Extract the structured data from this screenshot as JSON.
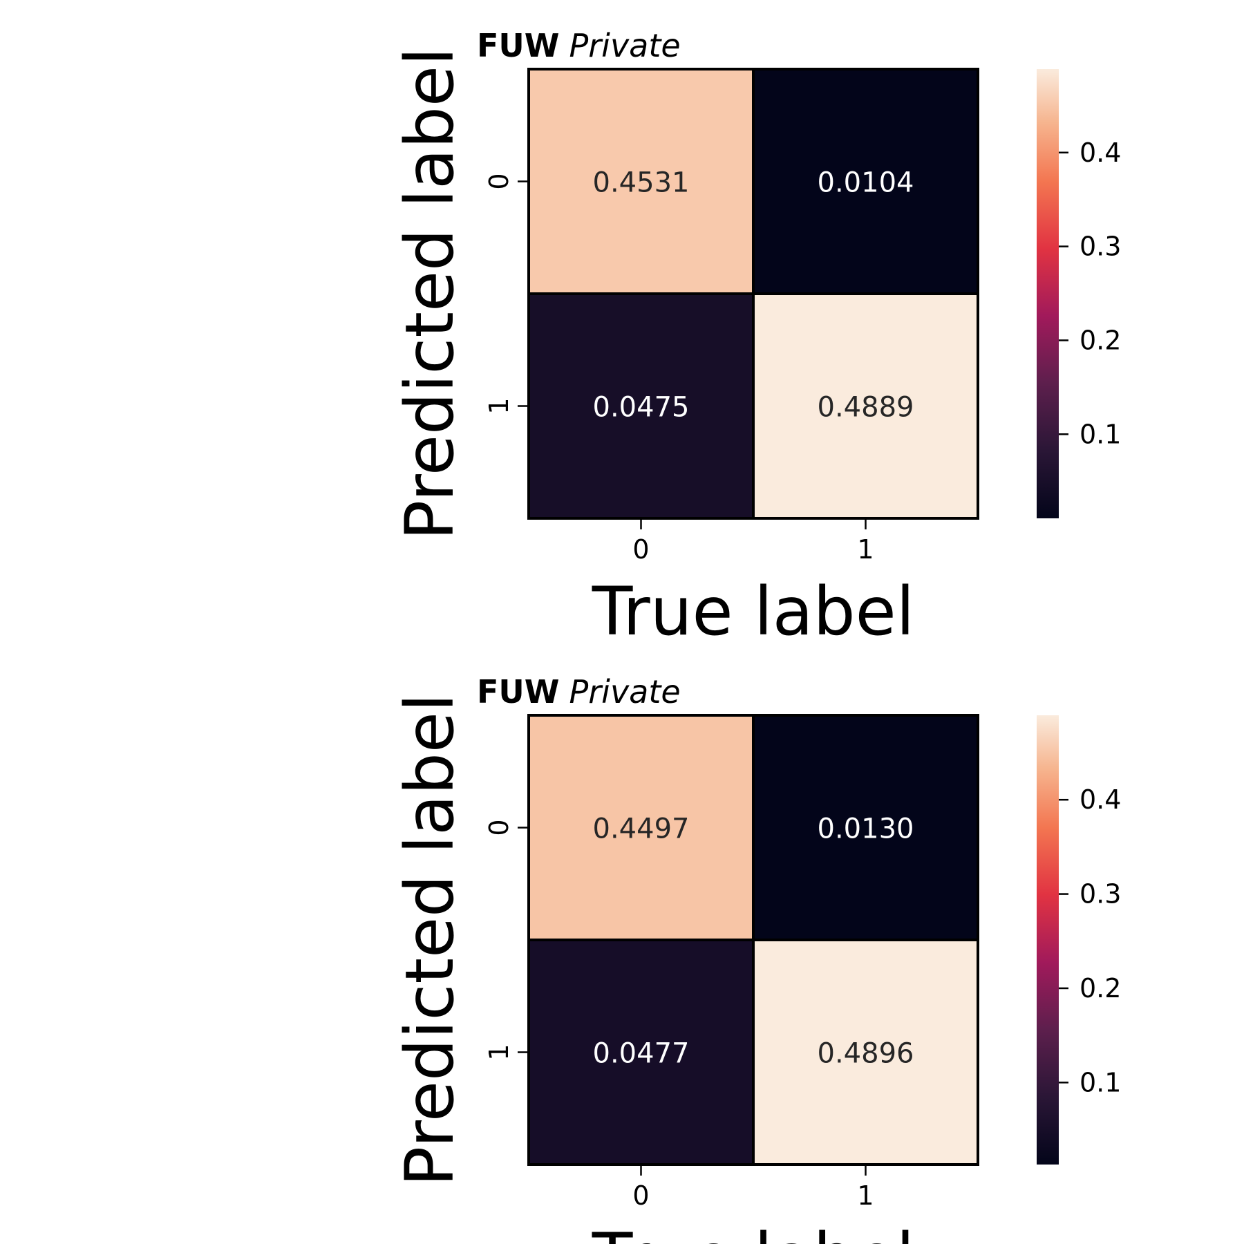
{
  "chart_data": [
    {
      "type": "heatmap",
      "title_bold": "FUW",
      "title_italic": "Private",
      "xlabel": "True label",
      "ylabel": "Predicted label",
      "x_categories": [
        "0",
        "1"
      ],
      "y_categories": [
        "0",
        "1"
      ],
      "matrix": [
        [
          0.4531,
          0.0104
        ],
        [
          0.0475,
          0.4889
        ]
      ],
      "cell_labels": [
        [
          "0.4531",
          "0.0104"
        ],
        [
          "0.0475",
          "0.4889"
        ]
      ],
      "colorbar_ticks": [
        "0.1",
        "0.2",
        "0.3",
        "0.4"
      ],
      "colorbar_range": [
        0.0104,
        0.4889
      ],
      "colormap": "rocket"
    },
    {
      "type": "heatmap",
      "title_bold": "FUW",
      "title_italic": "Private",
      "xlabel": "True label",
      "ylabel": "Predicted label",
      "x_categories": [
        "0",
        "1"
      ],
      "y_categories": [
        "0",
        "1"
      ],
      "matrix": [
        [
          0.4497,
          0.013
        ],
        [
          0.0477,
          0.4896
        ]
      ],
      "cell_labels": [
        [
          "0.4497",
          "0.0130"
        ],
        [
          "0.0477",
          "0.4896"
        ]
      ],
      "colorbar_ticks": [
        "0.1",
        "0.2",
        "0.3",
        "0.4"
      ],
      "colorbar_range": [
        0.013,
        0.4896
      ],
      "colormap": "rocket"
    }
  ]
}
